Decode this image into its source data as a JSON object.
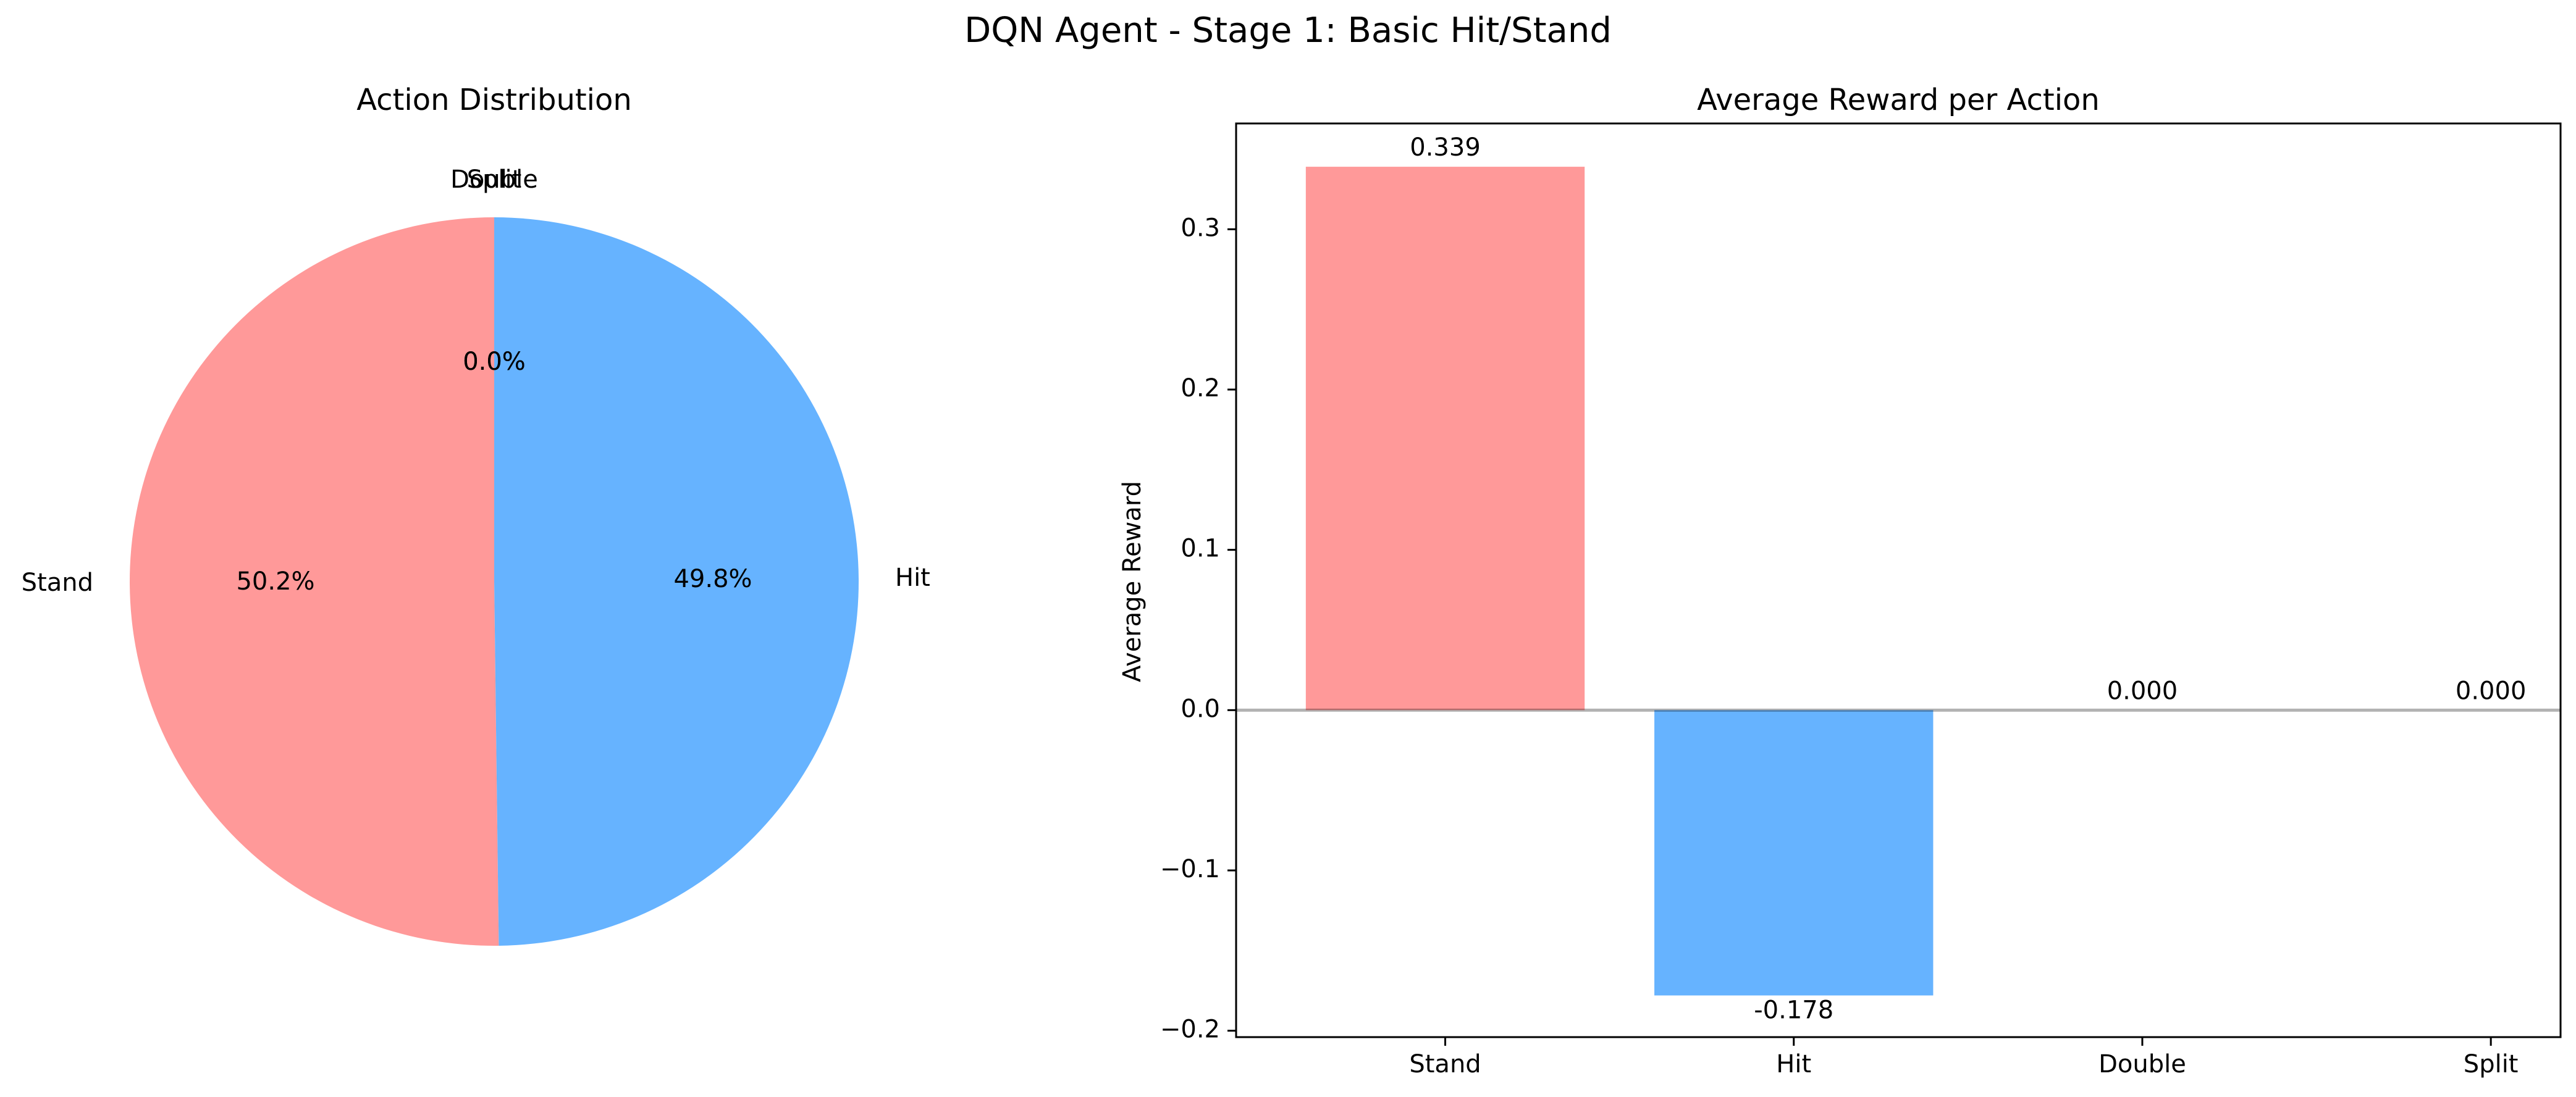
{
  "suptitle": "DQN Agent - Stage 1: Basic Hit/Stand",
  "chart_data": [
    {
      "type": "pie",
      "title": "Action Distribution",
      "labels": [
        "Stand",
        "Hit",
        "Double",
        "Split"
      ],
      "values": [
        50.2,
        49.8,
        0.0,
        0.0
      ],
      "pct_labels": [
        "50.2%",
        "49.8%",
        "0.0%",
        "0.0%"
      ],
      "colors": [
        "#ff9999",
        "#66b3ff",
        "#99ff99",
        "#ffcc99"
      ]
    },
    {
      "type": "bar",
      "title": "Average Reward per Action",
      "ylabel": "Average Reward",
      "xlabel": "",
      "categories": [
        "Stand",
        "Hit",
        "Double",
        "Split"
      ],
      "values": [
        0.339,
        -0.178,
        0.0,
        0.0
      ],
      "value_labels": [
        "0.339",
        "-0.178",
        "0.000",
        "0.000"
      ],
      "colors": [
        "#ff9999",
        "#66b3ff",
        "#99ff99",
        "#ffcc99"
      ],
      "ylim": [
        -0.204,
        0.366
      ],
      "yticks": [
        -0.2,
        -0.1,
        0.0,
        0.1,
        0.2,
        0.3
      ],
      "ytick_labels": [
        "−0.2",
        "−0.1",
        "0.0",
        "0.1",
        "0.2",
        "0.3"
      ],
      "zero_line": true,
      "grid": false
    }
  ]
}
